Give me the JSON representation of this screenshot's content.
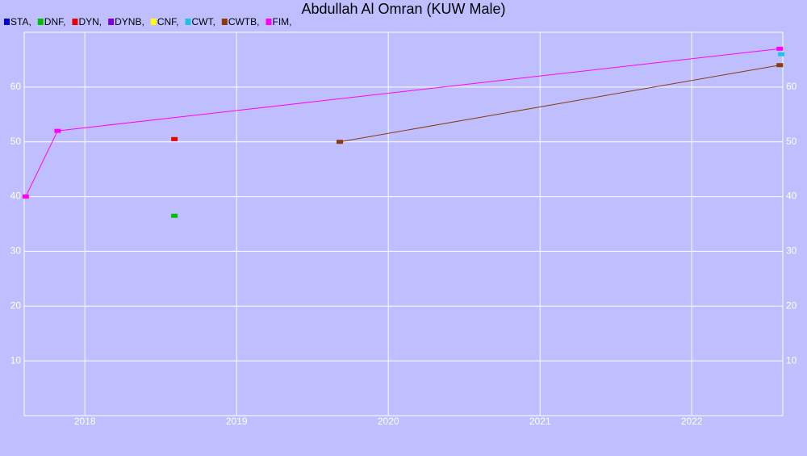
{
  "chart_data": {
    "type": "scatter-line",
    "title": "Abdullah Al Omran (KUW Male)",
    "xlim": [
      2017.6,
      2022.6
    ],
    "xticks": [
      2018,
      2019,
      2020,
      2021,
      2022
    ],
    "ylim": [
      0,
      70
    ],
    "yticks": [
      10,
      20,
      30,
      40,
      50,
      60
    ],
    "grid": true,
    "series": [
      {
        "name": "STA,",
        "color": "#0000dd",
        "x": [],
        "values": [],
        "lines": false
      },
      {
        "name": "DNF,",
        "color": "#00c000",
        "x": [
          2018.59
        ],
        "values": [
          36.5
        ],
        "lines": false
      },
      {
        "name": "DYN,",
        "color": "#ee0000",
        "x": [
          2018.59
        ],
        "values": [
          50.5
        ],
        "lines": false
      },
      {
        "name": "DYNB,",
        "color": "#7a00e0",
        "x": [],
        "values": [],
        "lines": false
      },
      {
        "name": "CNF,",
        "color": "#ffff00",
        "x": [],
        "values": [],
        "lines": false
      },
      {
        "name": "CWT,",
        "color": "#20c0e0",
        "x": [
          2022.59
        ],
        "values": [
          66
        ],
        "lines": false
      },
      {
        "name": "CWTB,",
        "color": "#8b3a0a",
        "x": [
          2019.68,
          2022.58
        ],
        "values": [
          50,
          64
        ],
        "lines": true
      },
      {
        "name": "FIM,",
        "color": "#ff00ff",
        "x": [
          2017.61,
          2017.82,
          2022.58
        ],
        "values": [
          40,
          52,
          67
        ],
        "lines": true
      }
    ]
  }
}
